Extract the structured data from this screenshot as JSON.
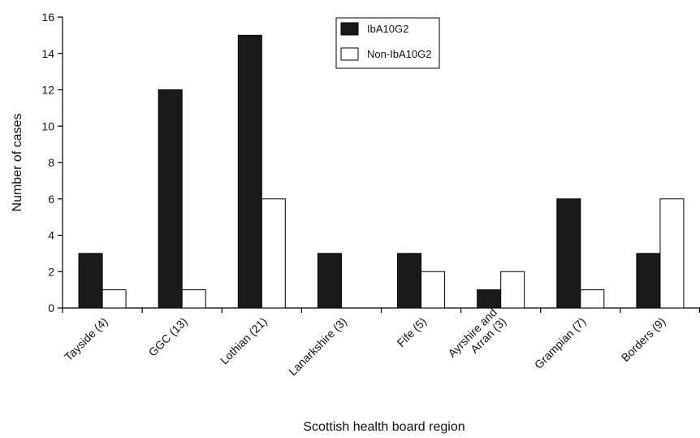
{
  "chart_data": {
    "type": "bar",
    "xlabel": "Scottish health board region",
    "ylabel": "Number of cases",
    "ylim": [
      0,
      16
    ],
    "yticks": [
      0,
      2,
      4,
      6,
      8,
      10,
      12,
      14,
      16
    ],
    "categories": [
      "Tayside (4)",
      "GGC (13)",
      "Lothian (21)",
      "Lanarkshire (3)",
      "Fife (5)",
      "Ayrshire and Arran (3)",
      "Grampian (7)",
      "Borders (9)"
    ],
    "category_lines": [
      [
        "Tayside (4)"
      ],
      [
        "GGC (13)"
      ],
      [
        "Lothian (21)"
      ],
      [
        "Lanarkshire (3)"
      ],
      [
        "Fife (5)"
      ],
      [
        "Ayrshire and",
        "Arran (3)"
      ],
      [
        "Grampian (7)"
      ],
      [
        "Borders (9)"
      ]
    ],
    "series": [
      {
        "name": "IbA10G2",
        "values": [
          3,
          12,
          15,
          3,
          3,
          1,
          6,
          3
        ],
        "color": "#1a1a1a"
      },
      {
        "name": "Non-IbA10G2",
        "values": [
          1,
          1,
          6,
          0,
          2,
          2,
          1,
          6
        ],
        "color": "#ffffff"
      }
    ],
    "legend_position": "top-center",
    "grid": false
  }
}
